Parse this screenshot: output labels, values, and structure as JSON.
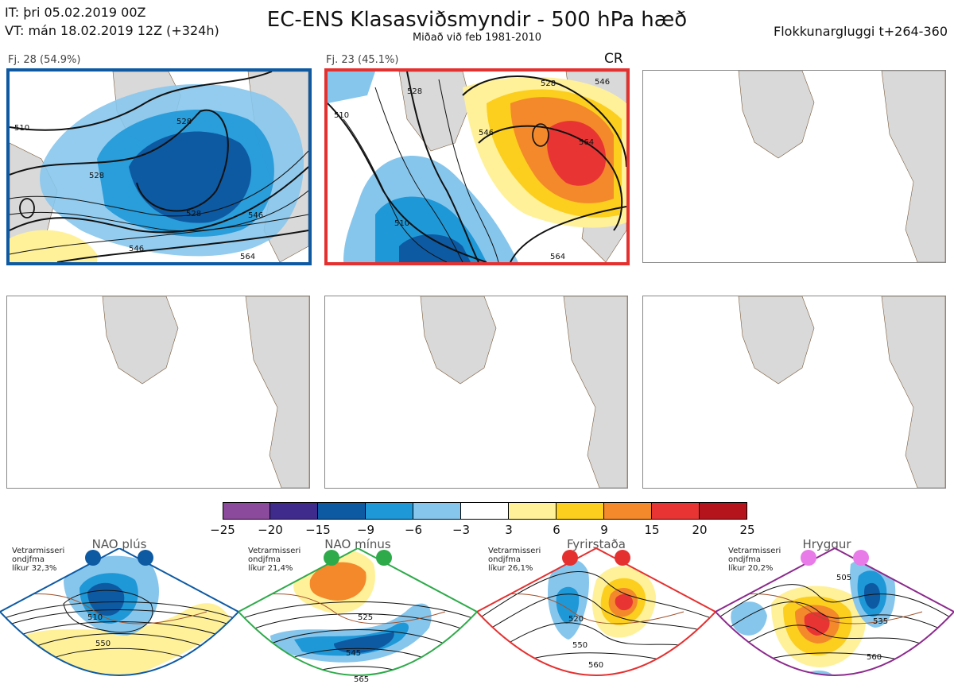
{
  "header": {
    "it_line": "IT: þri 05.02.2019 00Z",
    "vt_line": "VT: mán 18.02.2019 12Z  (+324h)",
    "title": "EC-ENS Klasasviðsmyndir - 500 hPa hæð",
    "subtitle": "Miðað við feb 1981-2010",
    "window": "Flokkunargluggi t+264-360"
  },
  "panels": [
    {
      "label": "Fj. 28 (54.9%)",
      "regime_tag": "",
      "border": "#0d5aa3",
      "contours": [
        "510",
        "528",
        "528",
        "528",
        "546",
        "546",
        "564"
      ]
    },
    {
      "label": "Fj. 23 (45.1%)",
      "regime_tag": "CR",
      "border": "#e53030",
      "contours": [
        "510",
        "510",
        "528",
        "528",
        "546",
        "546",
        "564",
        "564"
      ]
    }
  ],
  "colorbar": {
    "ticks": [
      "−25",
      "−20",
      "−15",
      "−9",
      "−6",
      "−3",
      "3",
      "6",
      "9",
      "15",
      "20",
      "25"
    ],
    "colors": [
      "#8b4a9c",
      "#3e2b8c",
      "#0d5aa3",
      "#1f98d8",
      "#87c6ec",
      "#ffffff",
      "#fff19a",
      "#fccf1e",
      "#f4892b",
      "#e93434",
      "#b5141c"
    ]
  },
  "regimes": [
    {
      "name": "NAO plús",
      "note": [
        "Vetrarmisseri",
        "ondjfma",
        "líkur 32,3%"
      ],
      "color": "#0d5aa3",
      "dot": "#0d5aa3",
      "contours": [
        "510",
        "550"
      ]
    },
    {
      "name": "NAO mínus",
      "note": [
        "Vetrarmisseri",
        "ondjfma",
        "líkur 21,4%"
      ],
      "color": "#2eaa4a",
      "dot": "#2eaa4a",
      "contours": [
        "525",
        "545",
        "565"
      ]
    },
    {
      "name": "Fyrirstaða",
      "note": [
        "Vetrarmisseri",
        "ondjfma",
        "líkur 26,1%"
      ],
      "color": "#e53030",
      "dot": "#e53030",
      "contours": [
        "520",
        "550",
        "560"
      ]
    },
    {
      "name": "Hryggur",
      "note": [
        "Vetrarmisseri",
        "ondjfma",
        "líkur 20,2%"
      ],
      "color": "#8b2a8c",
      "dot": "#e87be8",
      "contours": [
        "505",
        "535",
        "560"
      ]
    }
  ]
}
